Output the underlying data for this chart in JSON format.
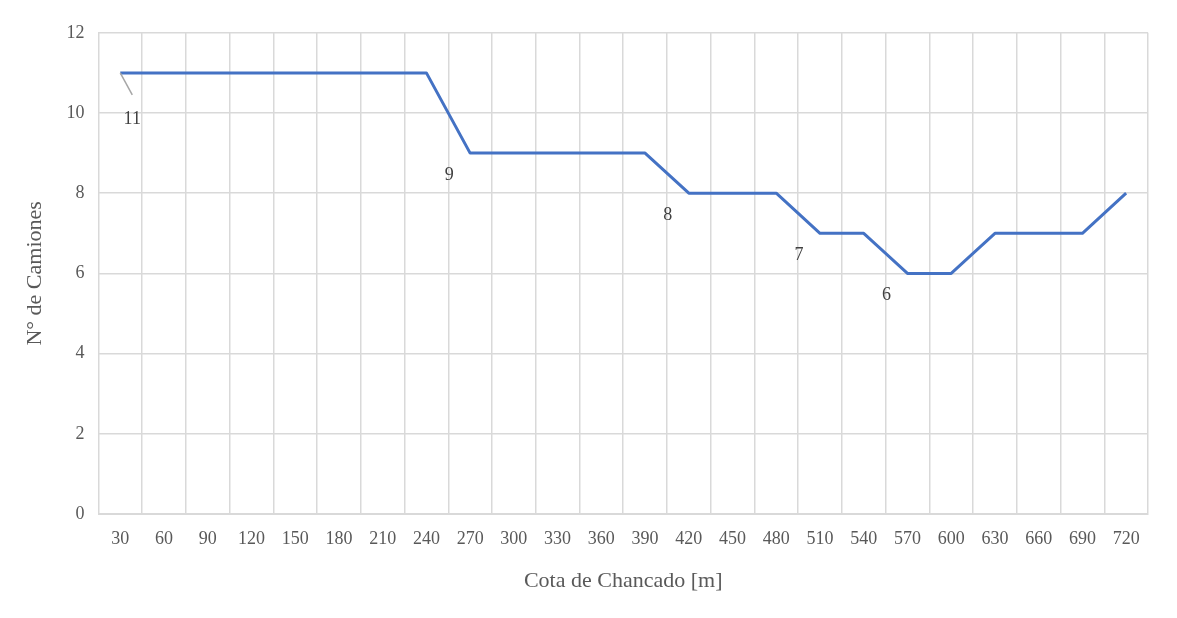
{
  "chart_data": {
    "type": "line",
    "xlabel": "Cota de Chancado [m]",
    "ylabel": "N° de Camiones",
    "categories": [
      "30",
      "60",
      "90",
      "120",
      "150",
      "180",
      "210",
      "240",
      "270",
      "300",
      "330",
      "360",
      "390",
      "420",
      "450",
      "480",
      "510",
      "540",
      "570",
      "600",
      "630",
      "660",
      "690",
      "720"
    ],
    "series": [
      {
        "color": "#4472c4",
        "values": [
          11,
          11,
          11,
          11,
          11,
          11,
          11,
          11,
          9,
          9,
          9,
          9,
          9,
          8,
          8,
          8,
          7,
          7,
          6,
          6,
          7,
          7,
          7,
          8
        ],
        "value_labels": [
          "11",
          null,
          null,
          null,
          null,
          null,
          null,
          null,
          "9",
          null,
          null,
          null,
          null,
          "8",
          null,
          null,
          "7",
          null,
          "6",
          null,
          null,
          null,
          null,
          null
        ]
      }
    ],
    "ylim": [
      0,
      12
    ],
    "yticks": [
      0,
      2,
      4,
      6,
      8,
      10,
      12
    ],
    "grid": true,
    "legend": false,
    "marker": "none",
    "line_style": "solid"
  }
}
